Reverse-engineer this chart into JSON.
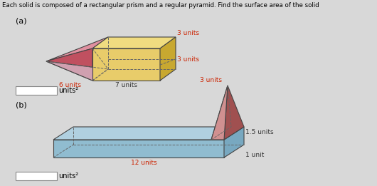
{
  "title": "Each solid is composed of a rectangular prism and a regular pyramid. Find the surface area of the solid",
  "background_color": "#d8d8d8",
  "fig_width": 5.3,
  "fig_height": 2.61,
  "label_a": "(a)",
  "label_b": "(b)",
  "units_label": "units²",
  "fig_a": {
    "label_3units_top": "3 units",
    "label_3units_right": "3 units",
    "label_6units": "6 units",
    "label_7units": "7 units",
    "box_front": "#e8cc6a",
    "box_top": "#f0dc80",
    "box_right": "#c8a830",
    "box_edge": "#444444",
    "pyr_face_top": "#e090a0",
    "pyr_face_front": "#c05060",
    "pyr_face_back": "#d0a0b0"
  },
  "fig_b": {
    "label_3units": "3 units",
    "label_15units": "1.5 units",
    "label_1unit": "1 unit",
    "label_12units": "12 units",
    "box_front": "#90bcd0",
    "box_top": "#b0d0e0",
    "box_right": "#78a8c0",
    "box_edge": "#444444",
    "pyr_face_left": "#c07878",
    "pyr_face_right": "#a05050",
    "pyr_face_front": "#d09090"
  }
}
